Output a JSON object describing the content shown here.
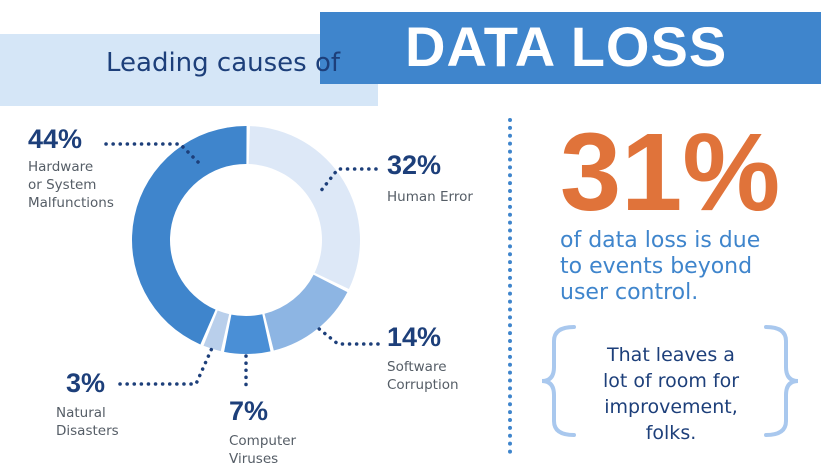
{
  "header": {
    "subtitle": "Leading causes of",
    "title": "DATA LOSS"
  },
  "colors": {
    "navy": "#1d3f7a",
    "blue": "#3f85cc",
    "orange": "#e0733a",
    "banner_light": "#d5e6f7"
  },
  "chart_data": {
    "type": "pie",
    "variant": "donut",
    "slices": [
      {
        "value": 44,
        "label_pct": "44%",
        "label": "Hardware\nor System\nMalfunctions",
        "color": "#3f85cc"
      },
      {
        "value": 32,
        "label_pct": "32%",
        "label": "Human Error",
        "color": "#dde8f7"
      },
      {
        "value": 14,
        "label_pct": "14%",
        "label": "Software\nCorruption",
        "color": "#8db5e3"
      },
      {
        "value": 7,
        "label_pct": "7%",
        "label": "Computer\nViruses",
        "color": "#4a8fd6"
      },
      {
        "value": 3,
        "label_pct": "3%",
        "label": "Natural\nDisasters",
        "color": "#b9cfeb"
      }
    ]
  },
  "stat": {
    "value": "31%",
    "text": "of data loss is due\nto events beyond\nuser control."
  },
  "quote": {
    "text": "That leaves a\nlot of room for\nimprovement, folks."
  }
}
